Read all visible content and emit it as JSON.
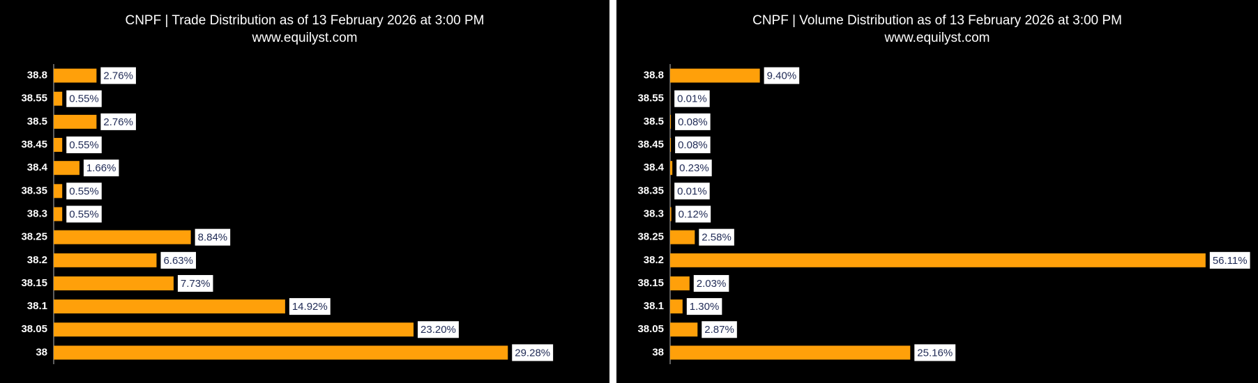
{
  "chart_data": [
    {
      "type": "bar",
      "orientation": "horizontal",
      "title": "CNPF | Trade Distribution as of 13 February 2026 at 3:00 PM",
      "subtitle": "www.equilyst.com",
      "categories": [
        "38.8",
        "38.55",
        "38.5",
        "38.45",
        "38.4",
        "38.35",
        "38.3",
        "38.25",
        "38.2",
        "38.15",
        "38.1",
        "38.05",
        "38"
      ],
      "values": [
        2.76,
        0.55,
        2.76,
        0.55,
        1.66,
        0.55,
        0.55,
        8.84,
        6.63,
        7.73,
        14.92,
        23.2,
        29.28
      ],
      "value_labels": [
        "2.76%",
        "0.55%",
        "2.76%",
        "0.55%",
        "1.66%",
        "0.55%",
        "0.55%",
        "8.84%",
        "6.63%",
        "7.73%",
        "14.92%",
        "23.20%",
        "29.28%"
      ],
      "color": "#ffa00a",
      "xlim": [
        0,
        33
      ]
    },
    {
      "type": "bar",
      "orientation": "horizontal",
      "title": "CNPF | Volume Distribution as of 13 February 2026 at 3:00 PM",
      "subtitle": "www.equilyst.com",
      "categories": [
        "38.8",
        "38.55",
        "38.5",
        "38.45",
        "38.4",
        "38.35",
        "38.3",
        "38.25",
        "38.2",
        "38.15",
        "38.1",
        "38.05",
        "38"
      ],
      "values": [
        9.4,
        0.01,
        0.08,
        0.08,
        0.23,
        0.01,
        0.12,
        2.58,
        56.11,
        2.03,
        1.3,
        2.87,
        25.16
      ],
      "value_labels": [
        "9.40%",
        "0.01%",
        "0.08%",
        "0.08%",
        "0.23%",
        "0.01%",
        "0.12%",
        "2.58%",
        "56.11%",
        "2.03%",
        "1.30%",
        "2.87%",
        "25.16%"
      ],
      "color": "#ffa00a",
      "xlim": [
        0,
        57
      ]
    }
  ]
}
